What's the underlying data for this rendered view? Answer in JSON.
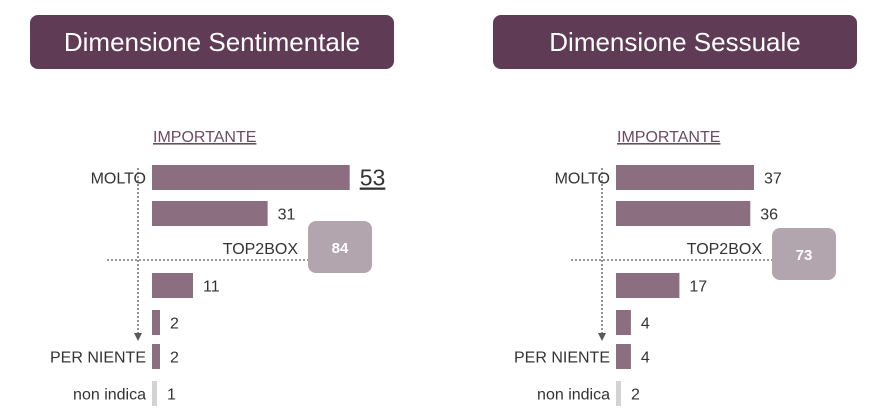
{
  "colors": {
    "title_bg": "#5f3b55",
    "bar": "#8b6f80",
    "bar_nonindica": "#d3d3d3",
    "top2box_bg": "#b3a5ae",
    "axis_line": "#5a5a5a",
    "header_text": "#6b4c61"
  },
  "panels": [
    {
      "title": "Dimensione Sentimentale"
    },
    {
      "title": "Dimensione Sessuale"
    }
  ],
  "chart_data": [
    {
      "type": "bar",
      "orientation": "horizontal",
      "title": "Dimensione Sentimentale",
      "header": "IMPORTANTE",
      "categories": [
        "MOLTO",
        "",
        "",
        "",
        "PER NIENTE",
        "non indica"
      ],
      "values": [
        53,
        31,
        11,
        2,
        2,
        1
      ],
      "highlight_index": 0,
      "top2box": {
        "label": "TOP2BOX",
        "value": 84
      }
    },
    {
      "type": "bar",
      "orientation": "horizontal",
      "title": "Dimensione Sessuale",
      "header": "IMPORTANTE",
      "categories": [
        "MOLTO",
        "",
        "",
        "",
        "PER NIENTE",
        "non indica"
      ],
      "values": [
        37,
        36,
        17,
        4,
        4,
        2
      ],
      "highlight_index": null,
      "top2box": {
        "label": "TOP2BOX",
        "value": 73
      }
    }
  ]
}
